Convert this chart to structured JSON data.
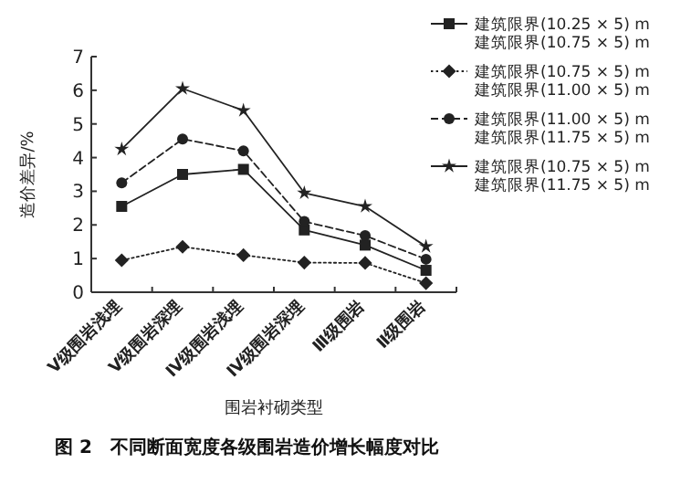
{
  "chart_data": {
    "type": "line",
    "title": "图 2　不同断面宽度各级围岩造价增长幅度对比",
    "xlabel": "围岩衬砌类型",
    "ylabel": "造价差异/%",
    "categories": [
      "Ⅴ级围岩浅埋",
      "Ⅴ级围岩深埋",
      "Ⅳ级围岩浅埋",
      "Ⅳ级围岩深埋",
      "Ⅲ级围岩",
      "Ⅱ级围岩"
    ],
    "ylim": [
      0,
      7
    ],
    "yticks": [
      0,
      1,
      2,
      3,
      4,
      5,
      6,
      7
    ],
    "grid": false,
    "legend": "top right",
    "series": [
      {
        "name": "建筑限界(10.25 × 5) m\n建筑限界(10.75 × 5) m",
        "color": "#222222",
        "marker": "square",
        "line_style": "solid",
        "values": [
          2.55,
          3.5,
          3.65,
          1.85,
          1.4,
          0.65
        ]
      },
      {
        "name": "建筑限界(10.75 × 5) m\n建筑限界(11.00 × 5) m",
        "color": "#222222",
        "marker": "diamond",
        "line_style": "dotted",
        "values": [
          0.95,
          1.35,
          1.1,
          0.88,
          0.87,
          0.27
        ]
      },
      {
        "name": "建筑限界(11.00 × 5) m\n建筑限界(11.75 × 5) m",
        "color": "#222222",
        "marker": "circle",
        "line_style": "dashed",
        "values": [
          3.25,
          4.55,
          4.2,
          2.1,
          1.68,
          0.98
        ]
      },
      {
        "name": "建筑限界(10.75 × 5) m\n建筑限界(11.75 × 5) m",
        "color": "#222222",
        "marker": "star",
        "line_style": "solid",
        "values": [
          4.25,
          6.05,
          5.4,
          2.95,
          2.55,
          1.36
        ]
      }
    ]
  }
}
